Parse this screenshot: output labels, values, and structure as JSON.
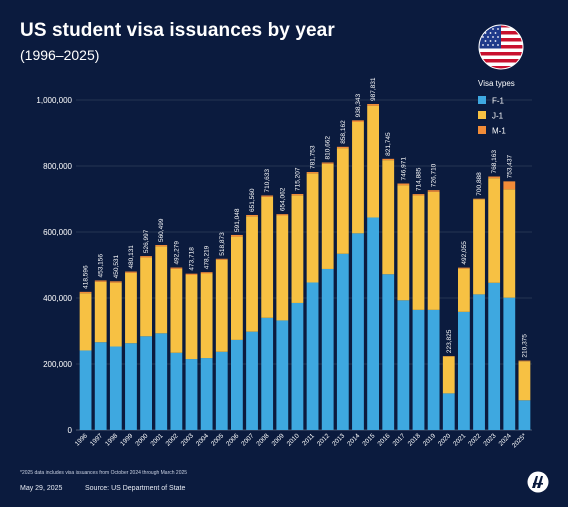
{
  "header": {
    "title": "US student visa issuances by year",
    "subtitle": "(1996–2025)"
  },
  "footer": {
    "footnote": "*2025 data includes visa issuances from October 2024 through March 2025",
    "date": "May 29, 2025",
    "source": "Source: US Department of State"
  },
  "icons": {
    "flag": "us-flag-icon",
    "logo": "agency-logo-icon"
  },
  "chart_data": {
    "type": "bar",
    "stacked": true,
    "categories": [
      "1996",
      "1997",
      "1998",
      "1999",
      "2000",
      "2001",
      "2002",
      "2003",
      "2004",
      "2005",
      "2006",
      "2007",
      "2008",
      "2009",
      "2010",
      "2011",
      "2012",
      "2013",
      "2014",
      "2015",
      "2016",
      "2017",
      "2018",
      "2019",
      "2020",
      "2021",
      "2022",
      "2023",
      "2024",
      "2025*"
    ],
    "totals": [
      418596,
      453156,
      450531,
      480131,
      526997,
      560499,
      492279,
      473718,
      478219,
      518873,
      591048,
      651560,
      710633,
      654062,
      715207,
      781753,
      810662,
      858162,
      938343,
      987831,
      821745,
      746971,
      714885,
      726710,
      223825,
      492055,
      700888,
      768163,
      753437,
      210375
    ],
    "total_labels": [
      "418,596",
      "453,156",
      "450,531",
      "480,131",
      "526,997",
      "560,499",
      "492,279",
      "473,718",
      "478,219",
      "518,873",
      "591,048",
      "651,560",
      "710,633",
      "654,062",
      "715,207",
      "781,753",
      "810,662",
      "858,162",
      "938,343",
      "987,831",
      "821,745",
      "746,971",
      "714,885",
      "726,710",
      "223,825",
      "492,055",
      "700,888",
      "768,163",
      "753,437",
      "210,375"
    ],
    "series": [
      {
        "name": "F-1",
        "color": "#3ea8e0",
        "values": [
          241000,
          266000,
          253000,
          263000,
          284000,
          293000,
          234000,
          215000,
          218000,
          237000,
          273000,
          298000,
          340000,
          332000,
          385000,
          447000,
          488000,
          534000,
          596000,
          644000,
          472000,
          393000,
          364000,
          364000,
          111000,
          358000,
          411000,
          446000,
          401000,
          90000
        ]
      },
      {
        "name": "J-1",
        "color": "#f7c143",
        "values": [
          173596,
          183156,
          193531,
          213131,
          238997,
          263499,
          254279,
          254718,
          256219,
          278873,
          313048,
          349560,
          366633,
          318062,
          326207,
          330753,
          318662,
          320162,
          337343,
          338831,
          345745,
          348971,
          346885,
          357710,
          111825,
          131055,
          287888,
          317163,
          328437,
          118375
        ]
      },
      {
        "name": "M-1",
        "color": "#f28c38",
        "values": [
          4000,
          4000,
          4000,
          4000,
          4000,
          4000,
          4000,
          4000,
          4000,
          3000,
          5000,
          4000,
          4000,
          4000,
          4000,
          4000,
          4000,
          4000,
          5000,
          5000,
          4000,
          5000,
          4000,
          5000,
          1000,
          3000,
          2000,
          5000,
          24000,
          2000
        ]
      }
    ],
    "ylim": [
      0,
      1050000
    ],
    "yticks": [
      0,
      200000,
      400000,
      600000,
      800000,
      1000000
    ],
    "ytick_labels": [
      "0",
      "200,000",
      "400,000",
      "600,000",
      "800,000",
      "1,000,000"
    ],
    "legend": {
      "title": "Visa types",
      "position": "top-right"
    },
    "grid": true
  }
}
